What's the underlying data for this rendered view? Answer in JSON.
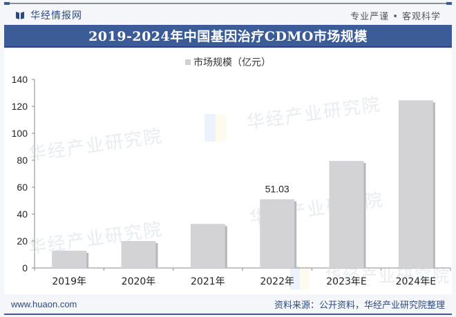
{
  "header": {
    "brand_name": "华经情报网",
    "slogan": "专业严谨 • 客观科学"
  },
  "title": "2019-2024年中国基因治疗CDMO市场规模",
  "legend": {
    "label": "市场规模（亿元）",
    "swatch_color": "#d0d0d0"
  },
  "footer": {
    "url": "www.huaon.com",
    "source": "资料来源：公开资料，华经产业研究院整理"
  },
  "watermark": {
    "text": "华经产业研究院",
    "url_text": "www.huaon.com"
  },
  "colors": {
    "title_bar": "#3c5c98",
    "brand": "#2c4a80",
    "bar": "#d3d3d6",
    "axis": "#888888"
  },
  "chart_data": {
    "type": "bar",
    "title": "2019-2024年中国基因治疗CDMO市场规模",
    "xlabel": "",
    "ylabel": "",
    "categories": [
      "2019年",
      "2020年",
      "2021年",
      "2022年",
      "2023年E",
      "2024年E"
    ],
    "series": [
      {
        "name": "市场规模（亿元）",
        "values": [
          12.8,
          20.0,
          32.7,
          51.03,
          79.5,
          124.5
        ]
      }
    ],
    "data_labels": [
      {
        "category": "2022年",
        "text": "51.03"
      }
    ],
    "yticks": [
      0,
      20,
      40,
      60,
      80,
      100,
      120,
      140
    ],
    "ylim": [
      0,
      140
    ],
    "grid": false,
    "legend_position": "top"
  }
}
